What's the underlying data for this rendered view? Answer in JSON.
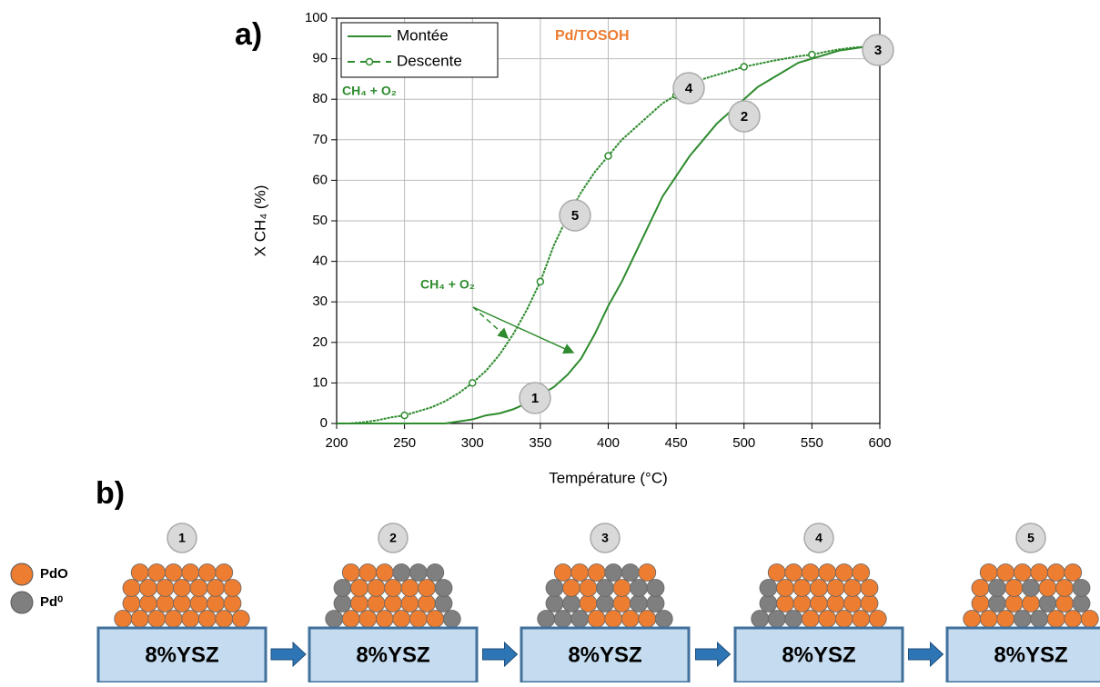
{
  "chart_data": {
    "type": "line",
    "panel_label": "a)",
    "x_label": "Température (°C)",
    "y_label": "X CH₄ (%)",
    "annotations": [
      "Pd/TOSOH",
      "CH₄ + O₂",
      "CH₄ + O₂"
    ],
    "point_labels": [
      "1",
      "2",
      "3",
      "4",
      "5"
    ],
    "x": [
      200,
      210,
      220,
      230,
      240,
      250,
      260,
      270,
      280,
      290,
      300,
      310,
      320,
      330,
      340,
      350,
      360,
      370,
      380,
      390,
      400,
      410,
      420,
      430,
      440,
      450,
      460,
      470,
      480,
      490,
      500,
      510,
      520,
      530,
      540,
      550,
      560,
      570,
      580,
      590
    ],
    "series": [
      {
        "name": "Montée",
        "color": "#2e8b2e",
        "dash": false,
        "values": [
          0,
          0,
          0,
          0,
          0,
          0,
          0,
          0,
          0,
          0.5,
          1,
          2,
          2.5,
          3.5,
          5,
          7,
          9,
          12,
          16,
          22,
          29,
          35,
          42,
          49,
          56,
          61,
          66,
          70,
          74,
          77,
          80,
          83,
          85,
          87,
          89,
          90,
          91,
          92,
          92.5,
          93
        ]
      },
      {
        "name": "Descente",
        "color": "#2e8b2e",
        "dash": true,
        "marker": "circle",
        "values": [
          0,
          0,
          0.3,
          0.8,
          1.5,
          2,
          3,
          4,
          5.5,
          7.5,
          10,
          13,
          17,
          22,
          28,
          35,
          44,
          51,
          57,
          62,
          66,
          70,
          73,
          76,
          79,
          81,
          83,
          85,
          86,
          87,
          88,
          88.7,
          89.4,
          90,
          90.6,
          91,
          91.7,
          92.3,
          92.7,
          93
        ]
      }
    ],
    "xlim": [
      200,
      600
    ],
    "xticks": [
      200,
      250,
      300,
      350,
      400,
      450,
      500,
      550,
      600
    ],
    "ylim": [
      0,
      100
    ],
    "yticks": [
      0,
      10,
      20,
      30,
      40,
      50,
      60,
      70,
      80,
      90,
      100
    ],
    "grid": true,
    "legend": "top-left"
  },
  "diagram": {
    "panel_label": "b)",
    "legend": [
      {
        "label": "PdO",
        "color": "#ed7d31"
      },
      {
        "label": "Pd⁰",
        "color": "#7f7f7f"
      }
    ],
    "stages": [
      {
        "label": "1",
        "support": "8%YSZ"
      },
      {
        "label": "2",
        "support": "8%YSZ"
      },
      {
        "label": "3",
        "support": "8%YSZ"
      },
      {
        "label": "4",
        "support": "8%YSZ"
      },
      {
        "label": "5",
        "support": "8%YSZ"
      }
    ]
  }
}
